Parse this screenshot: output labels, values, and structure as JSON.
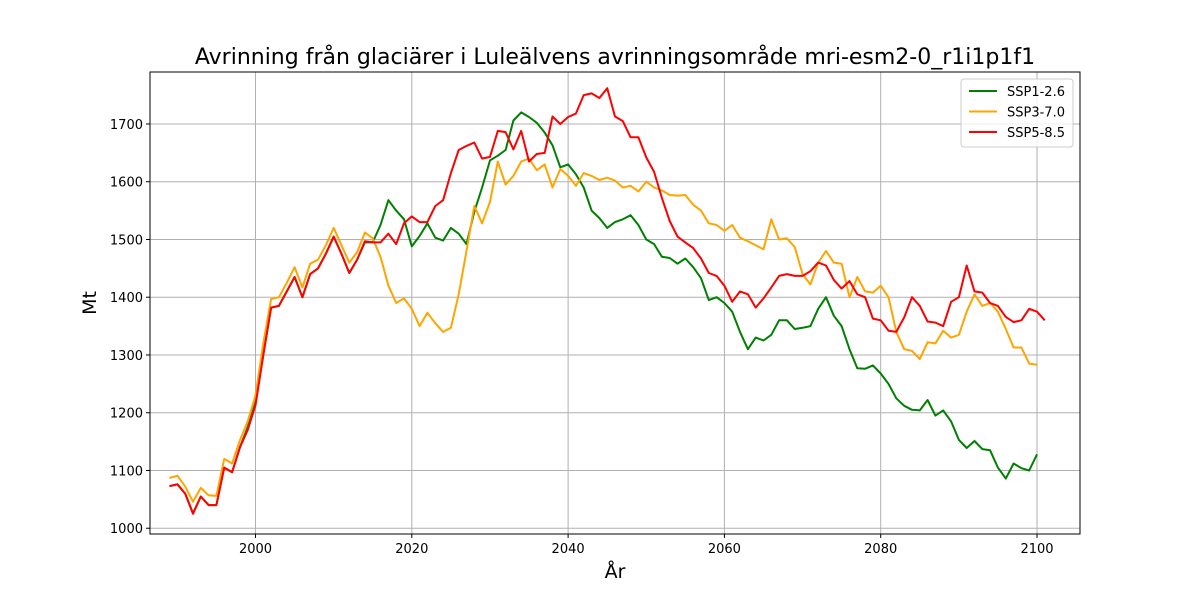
{
  "chart_data": {
    "type": "line",
    "title": "Avrinning från glaciärer i Luleälvens avrinningsområde mri-esm2-0_r1i1p1f1",
    "xlabel": "År",
    "ylabel": "Mt",
    "xlim": [
      1986.5,
      2105.5
    ],
    "ylim": [
      990,
      1790
    ],
    "xticks": [
      2000,
      2020,
      2040,
      2060,
      2080,
      2100
    ],
    "yticks": [
      1000,
      1100,
      1200,
      1300,
      1400,
      1500,
      1600,
      1700
    ],
    "grid": true,
    "legend_position": "top-right",
    "x_start": 1989,
    "series": [
      {
        "name": "SSP1-2.6",
        "color": "#008000",
        "values": [
          1073,
          1076,
          1060,
          1026,
          1055,
          1040,
          1040,
          1105,
          1097,
          1140,
          1175,
          1218,
          1300,
          1382,
          1385,
          1410,
          1435,
          1400,
          1440,
          1450,
          1475,
          1505,
          1475,
          1442,
          1465,
          1495,
          1495,
          1525,
          1568,
          1550,
          1535,
          1488,
          1506,
          1528,
          1503,
          1498,
          1520,
          1510,
          1492,
          1548,
          1590,
          1637,
          1645,
          1655,
          1706,
          1720,
          1712,
          1702,
          1685,
          1663,
          1625,
          1630,
          1613,
          1590,
          1550,
          1537,
          1520,
          1530,
          1535,
          1542,
          1525,
          1500,
          1492,
          1470,
          1468,
          1458,
          1467,
          1452,
          1433,
          1395,
          1400,
          1390,
          1375,
          1340,
          1310,
          1330,
          1325,
          1335,
          1360,
          1360,
          1345,
          1347,
          1350,
          1380,
          1400,
          1368,
          1350,
          1310,
          1277,
          1276,
          1282,
          1268,
          1250,
          1225,
          1212,
          1205,
          1204,
          1222,
          1195,
          1204,
          1185,
          1153,
          1139,
          1151,
          1137,
          1135,
          1105,
          1086,
          1112,
          1104,
          1100,
          1128
        ]
      },
      {
        "name": "SSP3-7.0",
        "color": "#ffa500",
        "values": [
          1087,
          1091,
          1072,
          1046,
          1070,
          1057,
          1056,
          1120,
          1112,
          1152,
          1185,
          1230,
          1320,
          1397,
          1400,
          1425,
          1452,
          1417,
          1458,
          1465,
          1490,
          1520,
          1490,
          1460,
          1478,
          1512,
          1502,
          1470,
          1420,
          1390,
          1398,
          1380,
          1350,
          1373,
          1355,
          1340,
          1347,
          1405,
          1480,
          1558,
          1528,
          1565,
          1635,
          1595,
          1610,
          1635,
          1640,
          1620,
          1630,
          1590,
          1622,
          1610,
          1593,
          1615,
          1610,
          1603,
          1607,
          1602,
          1590,
          1593,
          1583,
          1600,
          1590,
          1585,
          1577,
          1576,
          1577,
          1560,
          1550,
          1528,
          1525,
          1515,
          1525,
          1503,
          1497,
          1490,
          1483,
          1535,
          1500,
          1502,
          1487,
          1440,
          1422,
          1460,
          1480,
          1460,
          1458,
          1400,
          1435,
          1410,
          1408,
          1420,
          1400,
          1340,
          1310,
          1307,
          1293,
          1322,
          1320,
          1342,
          1330,
          1335,
          1375,
          1405,
          1385,
          1390,
          1375,
          1345,
          1313,
          1313,
          1285,
          1283
        ]
      },
      {
        "name": "SSP5-8.5",
        "color": "#ff0000",
        "values": [
          1073,
          1076,
          1060,
          1025,
          1055,
          1040,
          1040,
          1105,
          1097,
          1140,
          1170,
          1213,
          1300,
          1382,
          1385,
          1410,
          1435,
          1400,
          1440,
          1450,
          1475,
          1505,
          1475,
          1442,
          1465,
          1497,
          1495,
          1495,
          1510,
          1492,
          1528,
          1540,
          1530,
          1530,
          1558,
          1568,
          1615,
          1655,
          1662,
          1668,
          1640,
          1643,
          1688,
          1686,
          1656,
          1688,
          1635,
          1648,
          1650,
          1713,
          1700,
          1712,
          1718,
          1750,
          1753,
          1745,
          1762,
          1713,
          1705,
          1677,
          1677,
          1642,
          1617,
          1572,
          1532,
          1505,
          1495,
          1485,
          1467,
          1442,
          1437,
          1420,
          1392,
          1410,
          1405,
          1382,
          1398,
          1417,
          1437,
          1440,
          1437,
          1437,
          1445,
          1460,
          1455,
          1430,
          1415,
          1428,
          1405,
          1400,
          1363,
          1360,
          1342,
          1340,
          1365,
          1400,
          1385,
          1358,
          1356,
          1350,
          1392,
          1400,
          1455,
          1410,
          1408,
          1390,
          1385,
          1366,
          1357,
          1360,
          1380,
          1375,
          1360
        ]
      }
    ]
  }
}
